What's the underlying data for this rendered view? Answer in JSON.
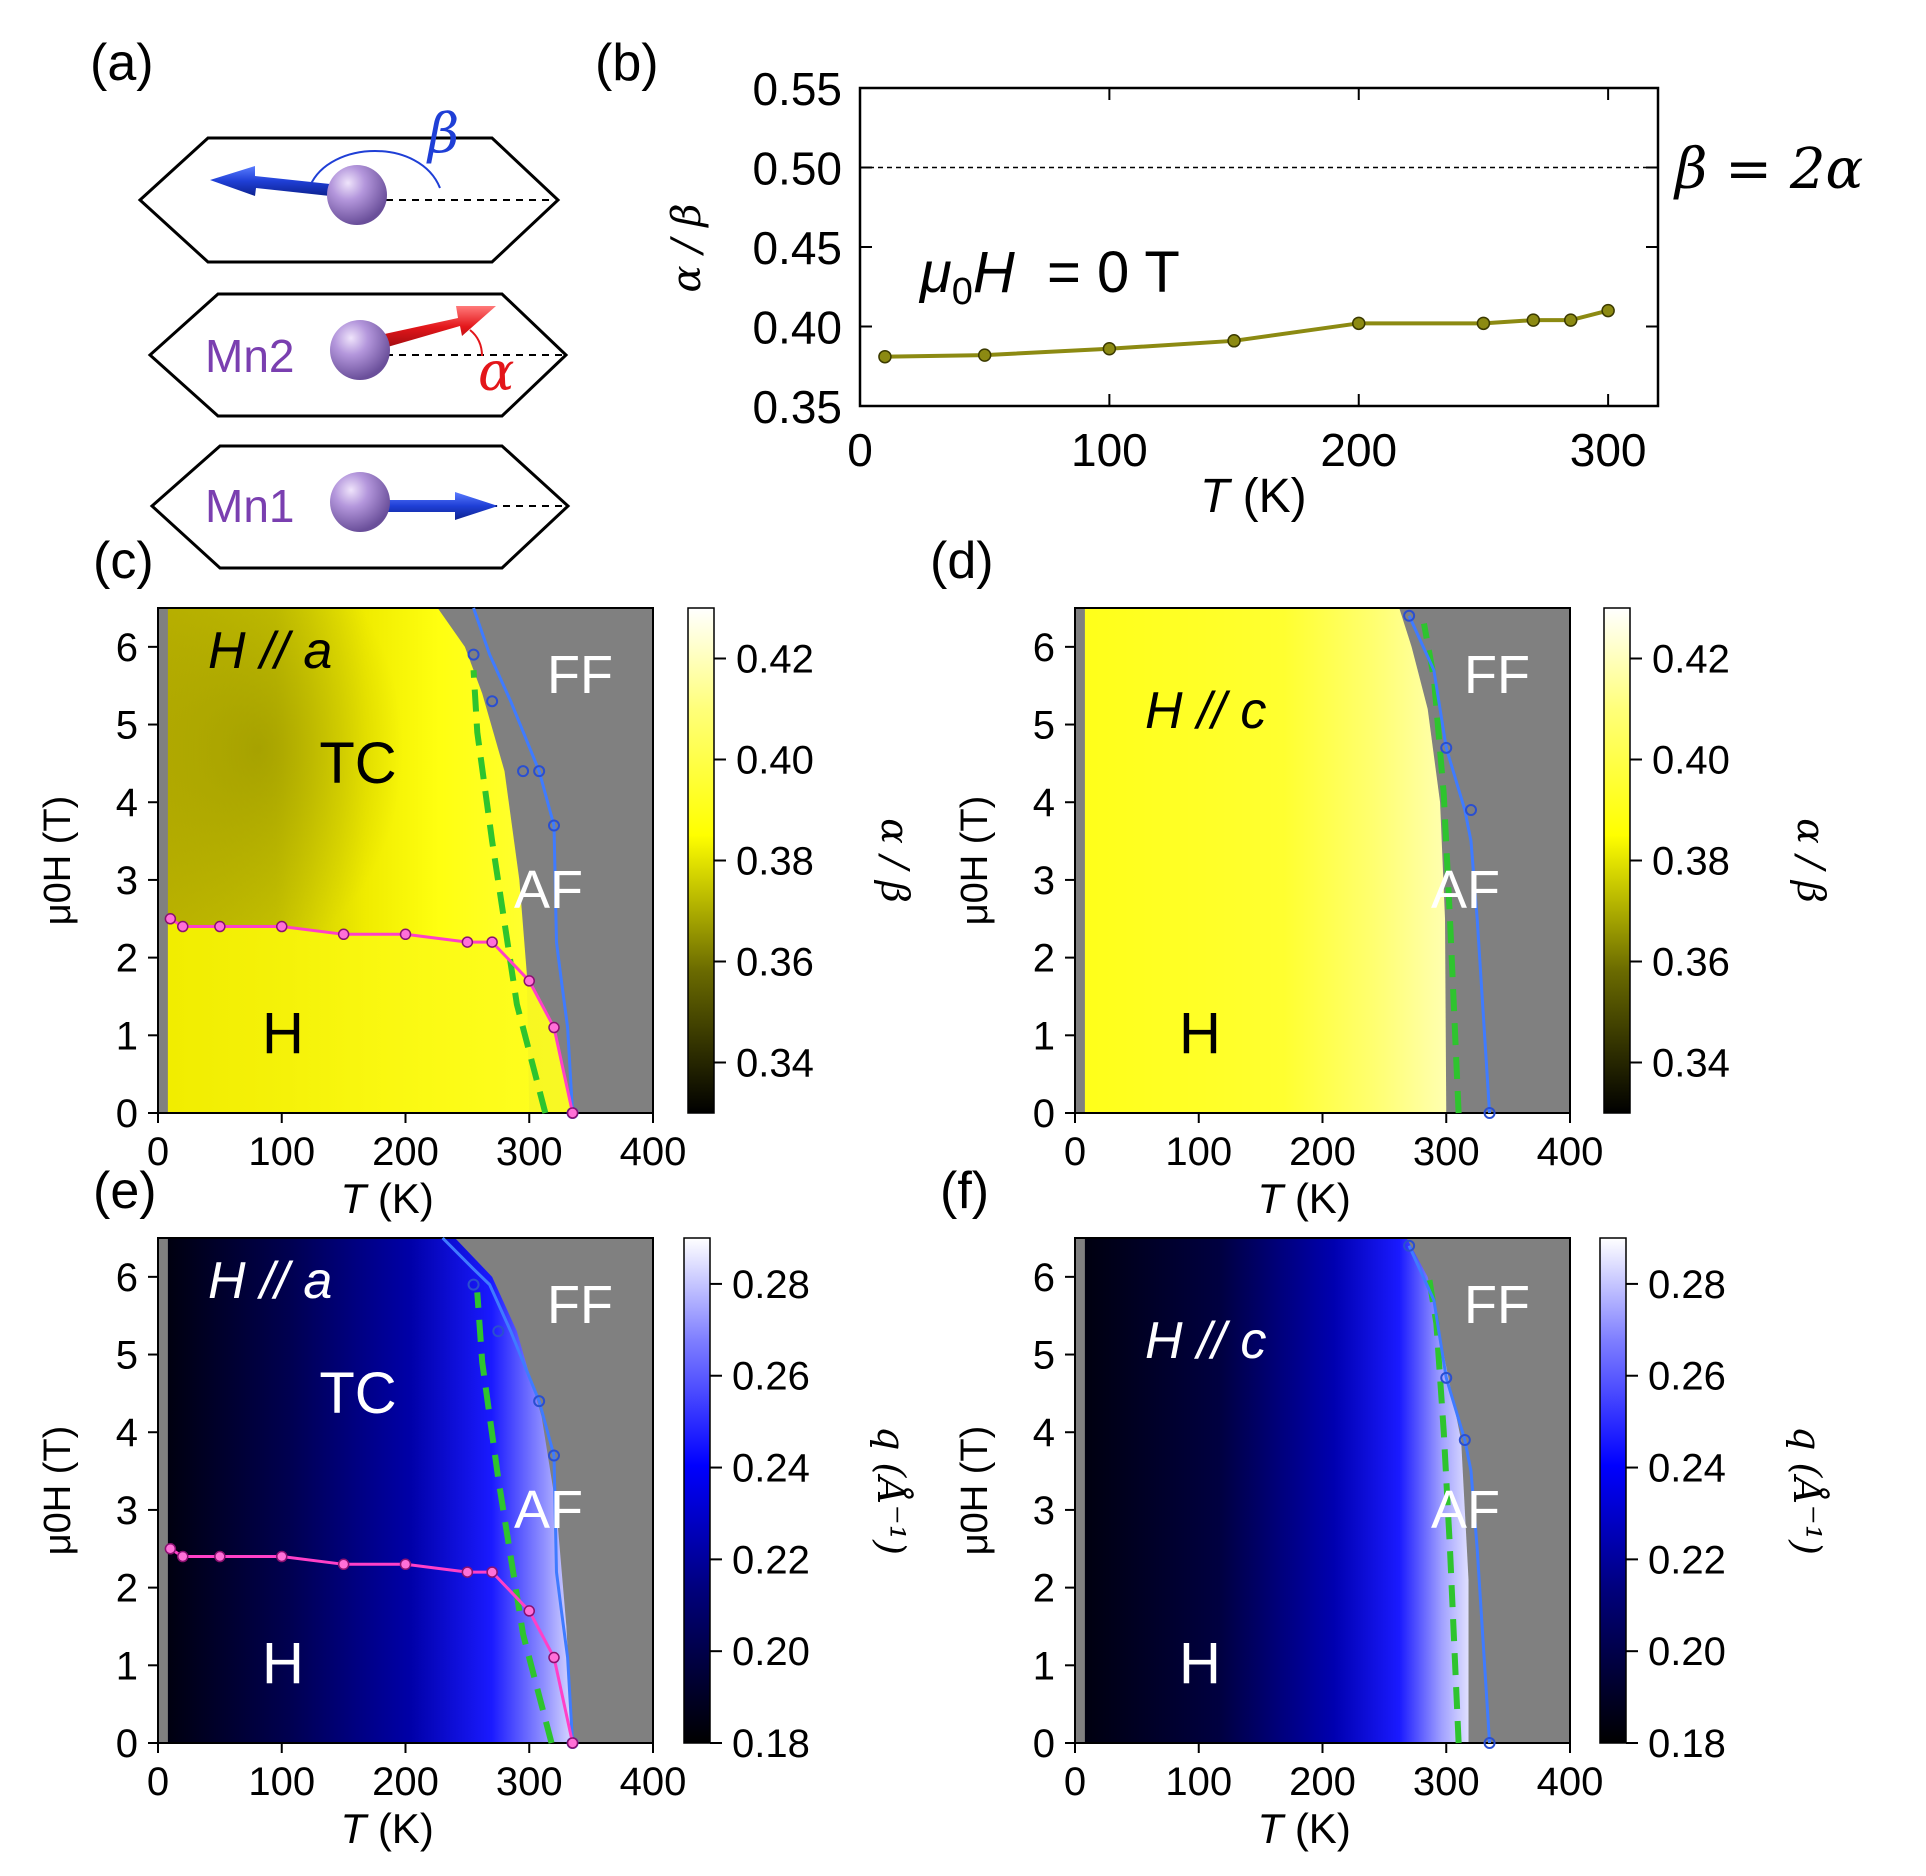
{
  "panel_labels": [
    "(a)",
    "(b)",
    "(c)",
    "(d)",
    "(e)",
    "(f)"
  ],
  "schematic": {
    "atoms": [
      "Mn2",
      "Mn1"
    ],
    "angles": [
      "β",
      "α"
    ],
    "colors": {
      "blue_arrow": "#1f3fd6",
      "red_arrow": "#e3161a",
      "atom": "#a887d8",
      "atom_label": "#7a3fb0"
    }
  },
  "chart_data": [
    {
      "id": "b",
      "type": "line",
      "xlabel_italic": "T",
      "xlabel_rest": " (K)",
      "ylabel": "α / β",
      "xlim": [
        0,
        320
      ],
      "ylim": [
        0.35,
        0.55
      ],
      "xticks": [
        "0",
        "100",
        "200",
        "300"
      ],
      "yticks": [
        "0.35",
        "0.40",
        "0.45",
        "0.50",
        "0.55"
      ],
      "x": [
        10,
        50,
        100,
        150,
        200,
        250,
        270,
        285,
        300
      ],
      "y": [
        0.381,
        0.382,
        0.386,
        0.391,
        0.402,
        0.402,
        0.404,
        0.404,
        0.41
      ],
      "reference_line": {
        "y": 0.5,
        "label": "β = 2α"
      },
      "annotation": {
        "mu": "μ",
        "sub": "0",
        "h": "H",
        "rest": "  = 0 T"
      },
      "color": "#8c8a12"
    },
    {
      "id": "c",
      "type": "heatmap",
      "field_dir": "a",
      "xlabel_italic": "T",
      "xlabel_rest": " (K)",
      "ylabel": "μ0H (T)",
      "xlim": [
        0,
        400
      ],
      "ylim": [
        0,
        6.5
      ],
      "xticks": [
        "0",
        "100",
        "200",
        "300",
        "400"
      ],
      "yticks": [
        "0",
        "1",
        "2",
        "3",
        "4",
        "5",
        "6"
      ],
      "title_h": "H",
      "title_rest": " // ",
      "title_axis": "a",
      "regions": {
        "FF": "FF",
        "TC": "TC",
        "AF": "AF",
        "H": "H"
      },
      "colorbar": {
        "label": "α / β",
        "ticks": [
          "0.34",
          "0.36",
          "0.38",
          "0.40",
          "0.42"
        ],
        "range": [
          0.33,
          0.43
        ],
        "scheme": "yellow"
      },
      "boundary_blue": {
        "T": [
          335,
          331,
          326,
          322,
          320,
          308,
          285,
          268,
          255
        ],
        "H": [
          0,
          1.1,
          1.7,
          2.2,
          3.7,
          4.4,
          5.3,
          5.9,
          6.5
        ]
      },
      "blue_markers": {
        "T": [
          335,
          320,
          308,
          295,
          270,
          255
        ],
        "H": [
          0,
          3.7,
          4.4,
          4.4,
          5.3,
          5.9
        ]
      },
      "boundary_magenta": {
        "T": [
          10,
          20,
          50,
          100,
          150,
          200,
          250,
          270,
          300,
          320,
          335
        ],
        "H": [
          2.5,
          2.4,
          2.4,
          2.4,
          2.3,
          2.3,
          2.2,
          2.2,
          1.7,
          1.1,
          0
        ]
      },
      "boundary_green": {
        "T": [
          313,
          290,
          270,
          258,
          255
        ],
        "H": [
          0,
          1.4,
          3.5,
          4.9,
          5.7
        ]
      },
      "yellow_edge": {
        "T": [
          300,
          298,
          292,
          280,
          262,
          248,
          226
        ],
        "H": [
          0,
          1.8,
          3.0,
          4.4,
          5.4,
          6.0,
          6.5
        ]
      }
    },
    {
      "id": "d",
      "type": "heatmap",
      "field_dir": "c",
      "xlabel_italic": "T",
      "xlabel_rest": " (K)",
      "ylabel": "μ0H (T)",
      "xlim": [
        0,
        400
      ],
      "ylim": [
        0,
        6.5
      ],
      "xticks": [
        "0",
        "100",
        "200",
        "300",
        "400"
      ],
      "yticks": [
        "0",
        "1",
        "2",
        "3",
        "4",
        "5",
        "6"
      ],
      "title_h": "H",
      "title_rest": " // ",
      "title_axis": "c",
      "regions": {
        "FF": "FF",
        "AF": "AF",
        "H": "H"
      },
      "colorbar": {
        "label": "α / β",
        "ticks": [
          "0.34",
          "0.36",
          "0.38",
          "0.40",
          "0.42"
        ],
        "range": [
          0.33,
          0.43
        ],
        "scheme": "yellow"
      },
      "boundary_blue": {
        "T": [
          335,
          325,
          320,
          315,
          300,
          290,
          270
        ],
        "H": [
          0,
          2.5,
          3.5,
          3.9,
          4.7,
          5.7,
          6.4
        ]
      },
      "blue_markers": {
        "T": [
          335,
          320,
          300,
          270
        ],
        "H": [
          0,
          3.9,
          4.7,
          6.4
        ]
      },
      "boundary_green": {
        "T": [
          310,
          303,
          298,
          290,
          282
        ],
        "H": [
          0,
          2.5,
          4.1,
          5.6,
          6.3
        ]
      },
      "yellow_edge": {
        "T": [
          300,
          299,
          295,
          285,
          272,
          262
        ],
        "H": [
          0,
          2.5,
          4.0,
          5.2,
          6.0,
          6.5
        ]
      }
    },
    {
      "id": "e",
      "type": "heatmap",
      "field_dir": "a",
      "xlabel_italic": "T",
      "xlabel_rest": " (K)",
      "ylabel": "μ0H (T)",
      "xlim": [
        0,
        400
      ],
      "ylim": [
        0,
        6.5
      ],
      "xticks": [
        "0",
        "100",
        "200",
        "300",
        "400"
      ],
      "yticks": [
        "0",
        "1",
        "2",
        "3",
        "4",
        "5",
        "6"
      ],
      "title_h": "H",
      "title_rest": " // ",
      "title_axis": "a",
      "regions": {
        "FF": "FF",
        "TC": "TC",
        "AF": "AF",
        "H": "H"
      },
      "colorbar": {
        "label": "q (Å⁻¹)",
        "ticks": [
          "0.18",
          "0.20",
          "0.22",
          "0.24",
          "0.26",
          "0.28"
        ],
        "range": [
          0.18,
          0.29
        ],
        "scheme": "blue"
      },
      "boundary_blue": {
        "T": [
          335,
          331,
          326,
          322,
          320,
          308,
          285,
          268,
          255,
          230
        ],
        "H": [
          0,
          1.1,
          1.7,
          2.2,
          3.7,
          4.4,
          5.3,
          5.9,
          6.1,
          6.5
        ]
      },
      "blue_markers": {
        "T": [
          335,
          320,
          308,
          275,
          255
        ],
        "H": [
          0,
          3.7,
          4.4,
          5.3,
          5.9
        ]
      },
      "boundary_magenta": {
        "T": [
          10,
          20,
          50,
          100,
          150,
          200,
          250,
          270,
          300,
          320,
          335
        ],
        "H": [
          2.5,
          2.4,
          2.4,
          2.4,
          2.3,
          2.3,
          2.2,
          2.2,
          1.7,
          1.1,
          0
        ]
      },
      "boundary_green": {
        "T": [
          318,
          295,
          275,
          262,
          258
        ],
        "H": [
          0,
          1.4,
          3.4,
          4.9,
          5.8
        ]
      },
      "yellow_edge": {
        "T": [
          335,
          330,
          322,
          310,
          290,
          270,
          240
        ],
        "H": [
          0,
          1.5,
          3.0,
          4.2,
          5.3,
          6.0,
          6.5
        ]
      }
    },
    {
      "id": "f",
      "type": "heatmap",
      "field_dir": "c",
      "xlabel_italic": "T",
      "xlabel_rest": " (K)",
      "ylabel": "μ0H (T)",
      "xlim": [
        0,
        400
      ],
      "ylim": [
        0,
        6.5
      ],
      "xticks": [
        "0",
        "100",
        "200",
        "300",
        "400"
      ],
      "yticks": [
        "0",
        "1",
        "2",
        "3",
        "4",
        "5",
        "6"
      ],
      "title_h": "H",
      "title_rest": " // ",
      "title_axis": "c",
      "regions": {
        "FF": "FF",
        "AF": "AF",
        "H": "H"
      },
      "colorbar": {
        "label": "q (Å⁻¹)",
        "ticks": [
          "0.18",
          "0.20",
          "0.22",
          "0.24",
          "0.26",
          "0.28"
        ],
        "range": [
          0.18,
          0.29
        ],
        "scheme": "blue"
      },
      "boundary_blue": {
        "T": [
          335,
          325,
          320,
          315,
          300,
          290,
          270
        ],
        "H": [
          0,
          2.5,
          3.5,
          3.9,
          4.7,
          5.7,
          6.4
        ]
      },
      "blue_markers": {
        "T": [
          335,
          315,
          300,
          270
        ],
        "H": [
          0,
          3.9,
          4.7,
          6.4
        ]
      },
      "boundary_green": {
        "T": [
          310,
          303,
          298,
          292,
          285
        ],
        "H": [
          0,
          2.5,
          4.0,
          5.4,
          6.1
        ]
      },
      "yellow_edge": {
        "T": [
          318,
          318,
          312,
          298,
          285,
          268
        ],
        "H": [
          0,
          2.1,
          3.9,
          5.0,
          6.0,
          6.5
        ]
      }
    }
  ]
}
